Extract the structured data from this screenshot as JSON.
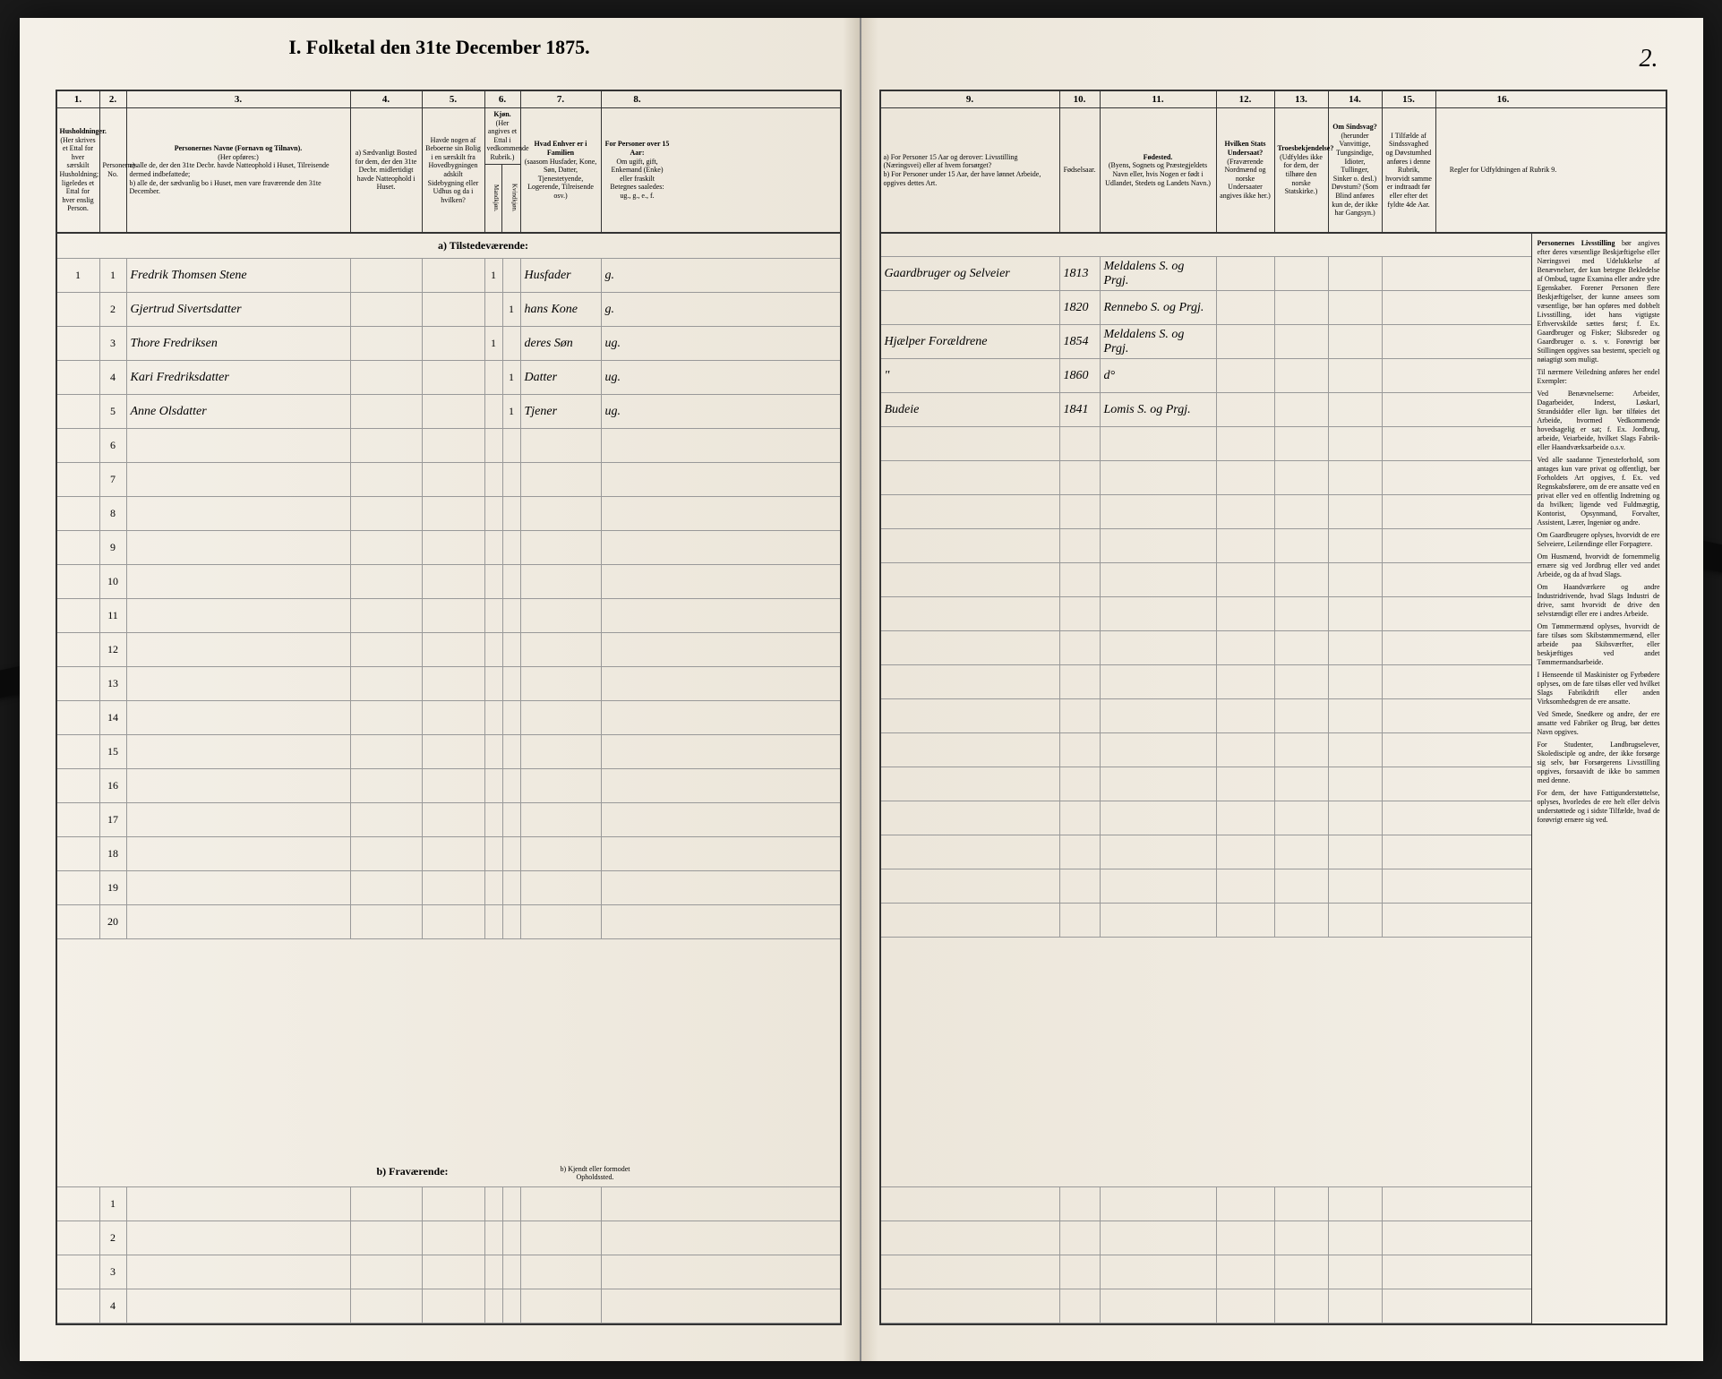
{
  "title": "I. Folketal den 31te December 1875.",
  "page_number": "2.",
  "columns": {
    "1": {
      "num": "1.",
      "label": "Husholdninger.",
      "sub": "(Her skrives et Ettal for hver særskilt Husholdning; ligeledes et Ettal for hver enslig Person."
    },
    "2": {
      "num": "2.",
      "label": "Personernes No."
    },
    "3": {
      "num": "3.",
      "label": "Personernes Navne (Fornavn og Tilnavn).",
      "sub_a": "a) alle de, der den 31te Decbr. havde Natteophold i Huset, Tilreisende dermed indbefattede;",
      "sub_b": "b) alle de, der sædvanlig bo i Huset, men vare fraværende den 31te December.",
      "note": "(Her opføres:)"
    },
    "4": {
      "num": "4.",
      "label": "a) Sædvanligt Bosted for dem, der den 31te Decbr. midlertidigt havde Natteophold i Huset."
    },
    "5": {
      "num": "5.",
      "label": "Havde nogen af Beboerne sin Bolig i en særskilt fra Hovedbygningen adskilt Sidebygning eller Udhus og da i hvilken?"
    },
    "6": {
      "num": "6.",
      "label": "Kjøn.",
      "sub": "(Her angives et Ettal i vedkommende Rubrik.)",
      "m": "Mandkjøn.",
      "k": "Kvindkjøn."
    },
    "7": {
      "num": "7.",
      "label": "Hvad Enhver er i Familien",
      "sub": "(saasom Husfader, Kone, Søn, Datter, Tjenestetyende, Logerende, Tilreisende osv.)"
    },
    "8": {
      "num": "8.",
      "label": "For Personer over 15 Aar:",
      "sub": "Om ugift, gift, Enkemand (Enke) eller fraskilt",
      "note": "Betegnes saaledes: ug., g., e., f."
    },
    "9": {
      "num": "9.",
      "label_a": "a) For Personer 15 Aar og derover: Livsstilling (Næringsvei) eller af hvem forsørget?",
      "label_b": "b) For Personer under 15 Aar, der have lønnet Arbeide, opgives dettes Art."
    },
    "10": {
      "num": "10.",
      "label": "Fødselsaar."
    },
    "11": {
      "num": "11.",
      "label": "Fødested.",
      "sub": "(Byens, Sognets og Præstegjeldets Navn eller, hvis Nogen er født i Udlandet, Stedets og Landets Navn.)"
    },
    "12": {
      "num": "12.",
      "label": "Hvilken Stats Undersaat?",
      "sub": "(Fraværende Nordmænd og norske Undersaater angives ikke her.)"
    },
    "13": {
      "num": "13.",
      "label": "Troesbekjendelse?",
      "sub": "(Udfyldes ikke for dem, der tilhøre den norske Statskirke.)"
    },
    "14": {
      "num": "14.",
      "label": "Om Sindsvag?",
      "sub": "(herunder Vanvittige, Tungsindige, Idioter, Tullinger, Sinker o. desl.) Døvstum? (Som Blind anføres kun de, der ikke har Gangsyn.)"
    },
    "15": {
      "num": "15.",
      "label": "I Tilfælde af Sindssvaghed og Døvstumhed anføres i denne Rubrik, hvorvidt samme er indtraadt før eller efter det fyldte 4de Aar."
    },
    "16": {
      "num": "16.",
      "label": "Regler for Udfyldningen af Rubrik 9."
    }
  },
  "section_a": "a) Tilstedeværende:",
  "section_b": "b) Fraværende:",
  "section_b_note": "b) Kjendt eller formodet Opholdssted.",
  "entries": [
    {
      "hh": "1",
      "no": "1",
      "name": "Fredrik Thomsen Stene",
      "sex_m": "1",
      "sex_k": "",
      "role": "Husfader",
      "status": "g.",
      "occupation": "Gaardbruger og Selveier",
      "year": "1813",
      "birthplace": "Meldalens S. og Prgj."
    },
    {
      "hh": "",
      "no": "2",
      "name": "Gjertrud Sivertsdatter",
      "sex_m": "",
      "sex_k": "1",
      "role": "hans Kone",
      "status": "g.",
      "occupation": "",
      "year": "1820",
      "birthplace": "Rennebo S. og Prgj."
    },
    {
      "hh": "",
      "no": "3",
      "name": "Thore Fredriksen",
      "sex_m": "1",
      "sex_k": "",
      "role": "deres Søn",
      "status": "ug.",
      "occupation": "Hjælper Forældrene",
      "year": "1854",
      "birthplace": "Meldalens S. og Prgj."
    },
    {
      "hh": "",
      "no": "4",
      "name": "Kari Fredriksdatter",
      "sex_m": "",
      "sex_k": "1",
      "role": "Datter",
      "status": "ug.",
      "occupation": "\"",
      "year": "1860",
      "birthplace": "d°"
    },
    {
      "hh": "",
      "no": "5",
      "name": "Anne Olsdatter",
      "sex_m": "",
      "sex_k": "1",
      "role": "Tjener",
      "status": "ug.",
      "occupation": "Budeie",
      "year": "1841",
      "birthplace": "Lomis S. og Prgj."
    }
  ],
  "rules": {
    "title": "Personernes Livsstilling",
    "p1": "bør angives efter deres væsentlige Beskjæftigelse eller Næringsvei med Udelukkelse af Benævnelser, der kun betegne Bekledelse af Ombud, tagne Examina eller andre ydre Egenskaber. Forener Personen flere Beskjæftigelser, der kunne ansees som væsentlige, bør han opføres med dobbelt Livsstilling, idet hans vigtigste Erhvervskilde sættes først; f. Ex. Gaardbruger og Fisker; Skibsreder og Gaardbruger o. s. v. Forøvrigt bør Stillingen opgives saa bestemt, specielt og nøiagtigt som muligt.",
    "p2": "Til nærmere Veiledning anføres her endel Exempler:",
    "p3": "Ved Benævnelserne: Arbeider, Dagarbeider, Inderst, Løskarl, Strandsidder eller lign. bør tilføies det Arbeide, hvormed Vedkommende hovedsagelig er sat; f. Ex. Jordbrug, arbeide, Veiarbeide, hvilket Slags Fabrik- eller Haandværksarbeide o.s.v.",
    "p4": "Ved alle saadanne Tjenesteforhold, som antages kun vare privat og offentligt, bør Forholdets Art opgives, f. Ex. ved Regnskabsførere, om de ere ansatte ved en privat eller ved en offentlig Indretning og da hvilken; ligende ved Fuldmægtig, Kontorist, Opsynmand, Forvalter, Assistent, Lærer, Ingeniør og andre.",
    "p5": "Om Gaardbrugere oplyses, hvorvidt de ere Selveiere, Leilændinge eller Forpagtere.",
    "p6": "Om Husmænd, hvorvidt de fornemmelig ernære sig ved Jordbrug eller ved andet Arbeide, og da af hvad Slags.",
    "p7": "Om Haandværkere og andre Industridrivende, hvad Slags Industri de drive, samt hvorvidt de drive den selvstændigt eller ere i andres Arbeide.",
    "p8": "Om Tømmermænd oplyses, hvorvidt de fare tilsøs som Skibstømmermænd, eller arbeide paa Skibsværfter, eller beskjæftiges ved andet Tømmermandsarbeide.",
    "p9": "I Henseende til Maskinister og Fyrbødere oplyses, om de fare tilsøs eller ved hvilket Slags Fabrikdrift eller anden Virksomhedsgren de ere ansatte.",
    "p10": "Ved Smede, Snedkere og andre, der ere ansatte ved Fabriker og Brug, bør dettes Navn opgives.",
    "p11": "For Studenter, Landbrugselever, Skoledisciple og andre, der ikke forsørge sig selv, bør Forsørgerens Livsstilling opgives, forsaavidt de ikke bo sammen med denne.",
    "p12": "For dem, der have Fattigunderstøttelse, oplyses, hvorledes de ere helt eller delvis understøttede og i sidste Tilfælde, hvad de forøvrigt ernære sig ved."
  },
  "blank_rows_a": [
    6,
    7,
    8,
    9,
    10,
    11,
    12,
    13,
    14,
    15,
    16,
    17,
    18,
    19,
    20
  ],
  "blank_rows_b": [
    1,
    2,
    3,
    4
  ]
}
